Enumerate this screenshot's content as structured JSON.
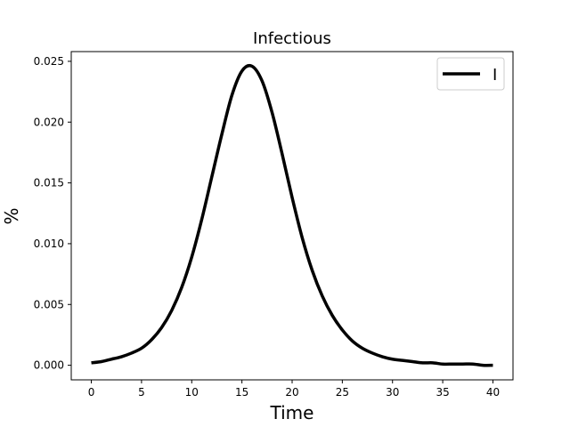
{
  "chart_data": {
    "type": "line",
    "title": "Infectious",
    "xlabel": "Time",
    "ylabel": "%",
    "xlim": [
      -2,
      42
    ],
    "ylim": [
      -0.0012,
      0.0258
    ],
    "xticks": [
      0,
      5,
      10,
      15,
      20,
      25,
      30,
      35,
      40
    ],
    "xtick_labels": [
      "0",
      "5",
      "10",
      "15",
      "20",
      "25",
      "30",
      "35",
      "40"
    ],
    "yticks": [
      0.0,
      0.005,
      0.01,
      0.015,
      0.02,
      0.025
    ],
    "ytick_labels": [
      "0.000",
      "0.005",
      "0.010",
      "0.015",
      "0.020",
      "0.025"
    ],
    "grid": false,
    "legend": {
      "placement": "top-right",
      "entries": [
        "I"
      ]
    },
    "series": [
      {
        "name": "I",
        "color": "#000000",
        "x": [
          0,
          1,
          2,
          3,
          4,
          5,
          6,
          7,
          8,
          9,
          10,
          11,
          12,
          13,
          14,
          15,
          16,
          17,
          18,
          19,
          20,
          21,
          22,
          23,
          24,
          25,
          26,
          27,
          28,
          29,
          30,
          31,
          32,
          33,
          34,
          35,
          36,
          37,
          38,
          39,
          40
        ],
        "y": [
          0.0002,
          0.0003,
          0.0005,
          0.0007,
          0.001,
          0.0014,
          0.0021,
          0.0031,
          0.0045,
          0.0064,
          0.0089,
          0.012,
          0.0155,
          0.019,
          0.0222,
          0.0242,
          0.0246,
          0.0234,
          0.0208,
          0.0174,
          0.0138,
          0.0105,
          0.0078,
          0.0057,
          0.0041,
          0.0029,
          0.002,
          0.0014,
          0.001,
          0.0007,
          0.0005,
          0.0004,
          0.0003,
          0.0002,
          0.0002,
          0.0001,
          0.0001,
          0.0001,
          0.0001,
          0.0,
          0.0
        ]
      }
    ]
  }
}
